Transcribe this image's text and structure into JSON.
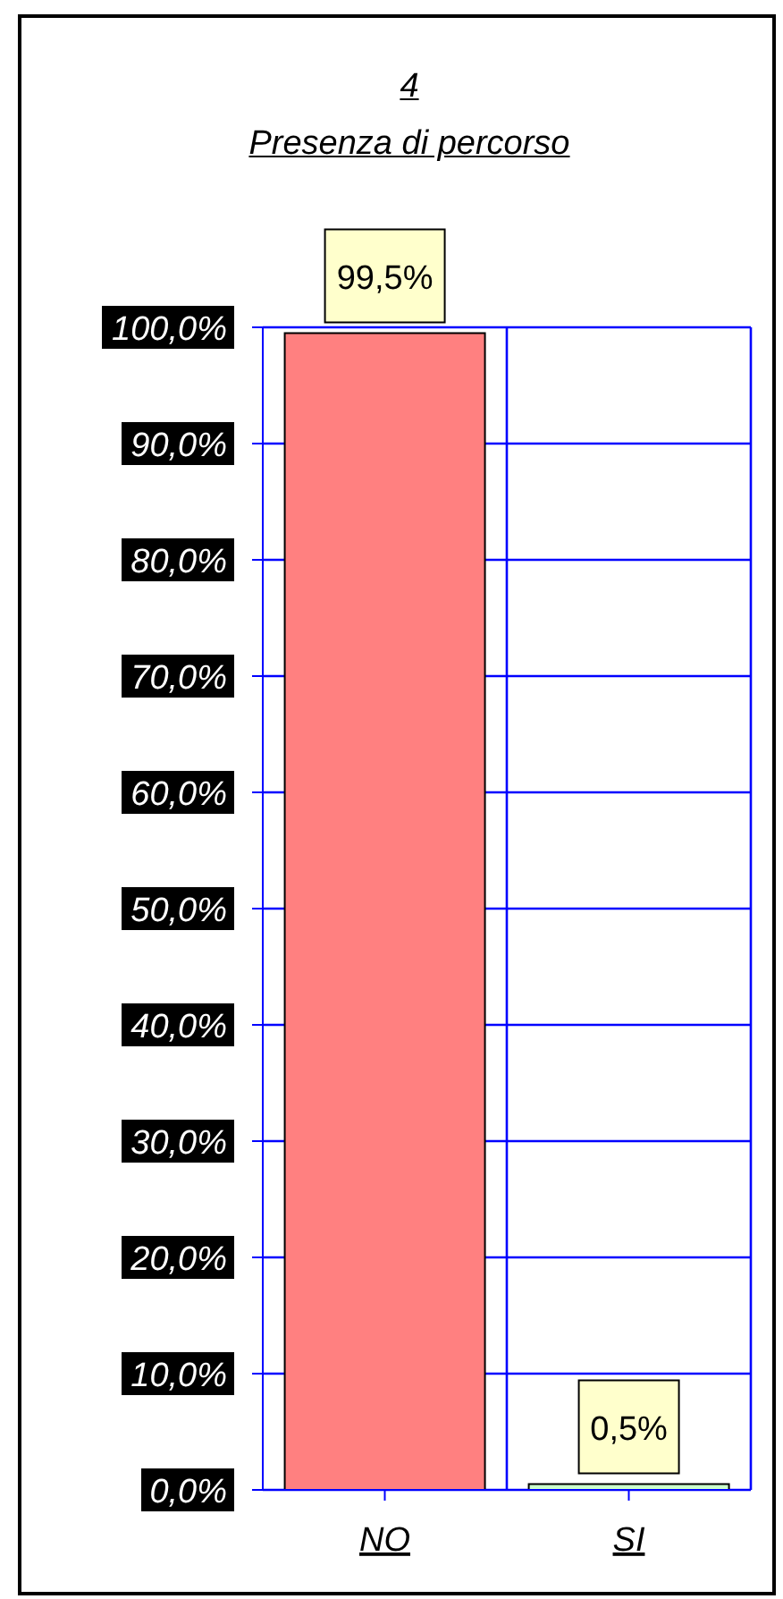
{
  "chart_data": {
    "type": "bar",
    "title": "4",
    "subtitle": "Presenza di percorso",
    "categories": [
      "NO",
      "SI"
    ],
    "values": [
      99.5,
      0.5
    ],
    "colors": [
      "#ff8080",
      "#ccffcc"
    ],
    "value_labels": [
      "99,5%",
      "0,5%"
    ],
    "ylim": [
      0,
      100
    ],
    "yticks": [
      {
        "value": 0,
        "label": "0,0%"
      },
      {
        "value": 10,
        "label": "10,0%"
      },
      {
        "value": 20,
        "label": "20,0%"
      },
      {
        "value": 30,
        "label": "30,0%"
      },
      {
        "value": 40,
        "label": "40,0%"
      },
      {
        "value": 50,
        "label": "50,0%"
      },
      {
        "value": 60,
        "label": "60,0%"
      },
      {
        "value": 70,
        "label": "70,0%"
      },
      {
        "value": 80,
        "label": "80,0%"
      },
      {
        "value": 90,
        "label": "90,0%"
      },
      {
        "value": 100,
        "label": "100,0%"
      }
    ],
    "grid": true
  }
}
